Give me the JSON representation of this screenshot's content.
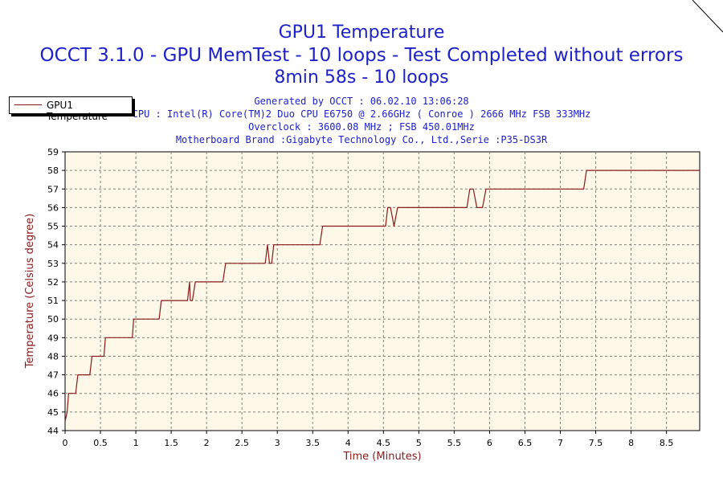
{
  "chart_data": {
    "type": "line",
    "title": "GPU1 Temperature",
    "subtitle": "OCCT 3.1.0 - GPU MemTest - 10 loops - Test Completed without errors",
    "subtitle2": "8min 58s - 10 loops",
    "info_lines": [
      "Generated by OCCT : 06.02.10 13:06:28",
      "CPU : Intel(R) Core(TM)2 Duo CPU E6750 @ 2.66GHz ( Conroe ) 2666 MHz FSB 333MHz",
      "Overclock : 3600.08 MHz ; FSB 450.01MHz",
      "Motherboard Brand :Gigabyte Technology Co., Ltd.,Serie :P35-DS3R"
    ],
    "xlabel": "Time (Minutes)",
    "ylabel": "Temperature (Celsius degree)",
    "xlim": [
      0,
      8.97
    ],
    "ylim": [
      44,
      59
    ],
    "xticks": [
      "0",
      "0.5",
      "1",
      "1.5",
      "2",
      "2.5",
      "3",
      "3.5",
      "4",
      "4.5",
      "5",
      "5.5",
      "6",
      "6.5",
      "7",
      "7.5",
      "8",
      "8.5"
    ],
    "yticks": [
      "44",
      "45",
      "46",
      "47",
      "48",
      "49",
      "50",
      "51",
      "52",
      "53",
      "54",
      "55",
      "56",
      "57",
      "58",
      "59"
    ],
    "grid": true,
    "legend_position": "top-left",
    "series": [
      {
        "name": "GPU1 Temperature",
        "color": "#8b1a1a",
        "x": [
          0,
          0.03,
          0.05,
          0.07,
          0.09,
          0.15,
          0.18,
          0.2,
          0.35,
          0.38,
          0.4,
          0.55,
          0.57,
          0.6,
          0.95,
          0.97,
          1.0,
          1.33,
          1.36,
          1.38,
          1.7,
          1.73,
          1.76,
          1.77,
          1.8,
          1.84,
          1.85,
          1.88,
          2.23,
          2.27,
          2.3,
          2.8,
          2.83,
          2.86,
          2.89,
          2.92,
          2.95,
          2.98,
          3.6,
          3.64,
          3.67,
          4.5,
          4.53,
          4.56,
          4.6,
          4.65,
          4.7,
          4.75,
          5.65,
          5.68,
          5.72,
          5.77,
          5.82,
          5.9,
          5.95,
          7.33,
          7.37,
          7.4,
          8.97
        ],
        "values": [
          44.5,
          45,
          46,
          46,
          46,
          46,
          47,
          47,
          47,
          48,
          48,
          48,
          49,
          49,
          49,
          50,
          50,
          50,
          51,
          51,
          51,
          51,
          52,
          51,
          51,
          52,
          52,
          52,
          52,
          53,
          53,
          53,
          53,
          54,
          53,
          53,
          54,
          54,
          54,
          55,
          55,
          55,
          55,
          56,
          56,
          55,
          56,
          56,
          56,
          56,
          57,
          57,
          56,
          56,
          57,
          57,
          58,
          58,
          58
        ]
      }
    ]
  }
}
